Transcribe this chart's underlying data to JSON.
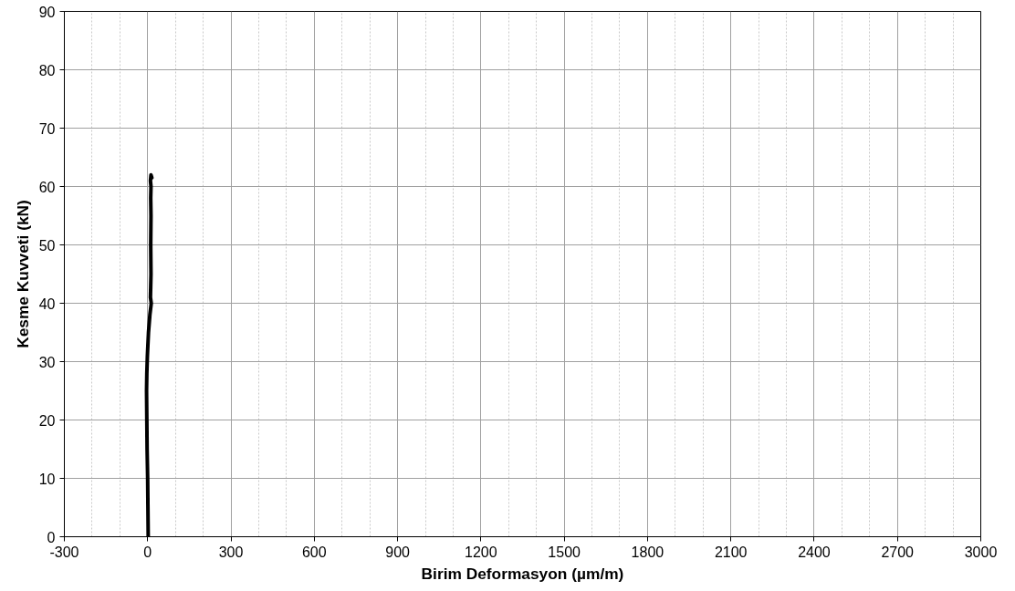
{
  "chart_data": {
    "type": "line",
    "xlabel": "Birim Deformasyon (µm/m)",
    "ylabel": "Kesme Kuvveti (kN)",
    "x": [
      2,
      1,
      0,
      -2,
      -3,
      -4,
      -3,
      -1,
      3,
      8,
      13,
      10,
      12,
      11,
      12,
      11,
      12,
      10,
      12,
      15
    ],
    "series": [
      {
        "color": "#000000",
        "values": [
          0,
          5,
          10,
          15,
          20,
          25,
          28,
          31,
          35,
          38,
          40,
          41,
          45,
          50,
          55,
          58,
          60,
          61,
          62,
          61.5
        ]
      }
    ],
    "xlim": [
      -300,
      3000
    ],
    "xticks": [
      -300,
      0,
      300,
      600,
      900,
      1200,
      1500,
      1800,
      2100,
      2400,
      2700,
      3000
    ],
    "ylim": [
      0,
      90
    ],
    "yticks": [
      0,
      10,
      20,
      30,
      40,
      50,
      60,
      70,
      80,
      90
    ],
    "grid": true,
    "marker": "none",
    "line_style": "solid"
  }
}
